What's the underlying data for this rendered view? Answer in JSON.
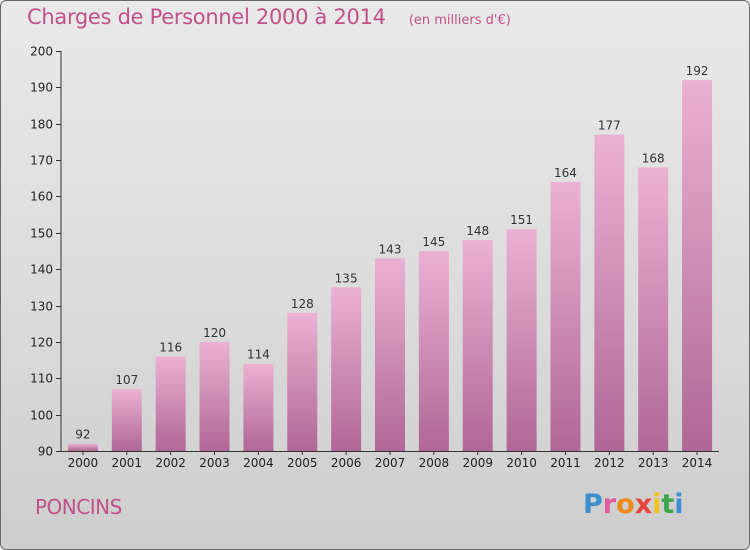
{
  "header": {
    "title": "Charges de Personnel 2000 à 2014",
    "subtitle": "(en milliers d'€)"
  },
  "footer": {
    "commune": "PONCINS",
    "logo_text": "Proxiti",
    "logo_letters": [
      "P",
      "r",
      "o",
      "x",
      "i",
      "t",
      "i"
    ],
    "logo_colors": [
      "#3b8fd0",
      "#e05a9e",
      "#f08a1c",
      "#e8433f",
      "#f0c21c",
      "#3aa54a",
      "#3b8fd0"
    ]
  },
  "colors": {
    "bar_top": "#ebb1d2",
    "bar_bottom": "#b06796",
    "accent": "#c2508a"
  },
  "chart_data": {
    "type": "bar",
    "title": "Charges de Personnel 2000 à 2014",
    "subtitle": "(en milliers d'€)",
    "categories": [
      "2000",
      "2001",
      "2002",
      "2003",
      "2004",
      "2005",
      "2006",
      "2007",
      "2008",
      "2009",
      "2010",
      "2011",
      "2012",
      "2013",
      "2014"
    ],
    "values": [
      92,
      107,
      116,
      120,
      114,
      128,
      135,
      143,
      145,
      148,
      151,
      164,
      177,
      168,
      192
    ],
    "xlabel": "",
    "ylabel": "",
    "ylim": [
      90,
      200
    ],
    "yticks": [
      90,
      100,
      110,
      120,
      130,
      140,
      150,
      160,
      170,
      180,
      190,
      200
    ],
    "grid": false,
    "legend": "none"
  }
}
